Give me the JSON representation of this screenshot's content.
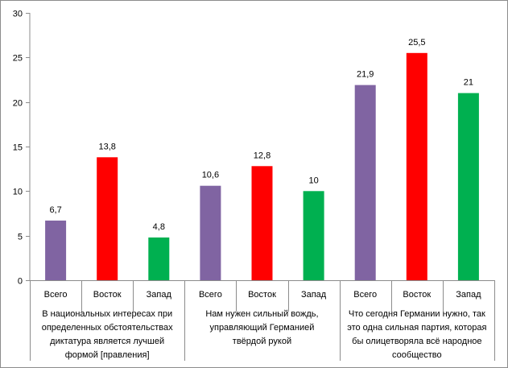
{
  "chart_data": {
    "type": "bar",
    "title": "",
    "xlabel": "",
    "ylabel": "",
    "ylim": [
      0,
      30
    ],
    "yticks": [
      0,
      5,
      10,
      15,
      20,
      25,
      30
    ],
    "grid": false,
    "legend": "none",
    "groups": [
      {
        "label_lines": [
          "В национальных  интересах при",
          "определенных обстоятельствах",
          "диктатура является лучшей",
          "формой [правления]"
        ],
        "categories": [
          "Всего",
          "Восток",
          "Запад"
        ],
        "values": [
          6.7,
          13.8,
          4.8
        ],
        "value_labels": [
          "6,7",
          "13,8",
          "4,8"
        ]
      },
      {
        "label_lines": [
          "Нам нужен сильный вождь,",
          "управляющий  Германией",
          "твёрдой рукой"
        ],
        "categories": [
          "Всего",
          "Восток",
          "Запад"
        ],
        "values": [
          10.6,
          12.8,
          10
        ],
        "value_labels": [
          "10,6",
          "12,8",
          "10"
        ]
      },
      {
        "label_lines": [
          "Что сегодня Германии нужно, так",
          "это одна сильная партия, которая",
          "бы олицетворяла всё народное",
          "сообщество"
        ],
        "categories": [
          "Всего",
          "Восток",
          "Запад"
        ],
        "values": [
          21.9,
          25.5,
          21
        ],
        "value_labels": [
          "21,9",
          "25,5",
          "21"
        ]
      }
    ],
    "category_colors": [
      "#8064a2",
      "#ff0000",
      "#00b050"
    ]
  }
}
